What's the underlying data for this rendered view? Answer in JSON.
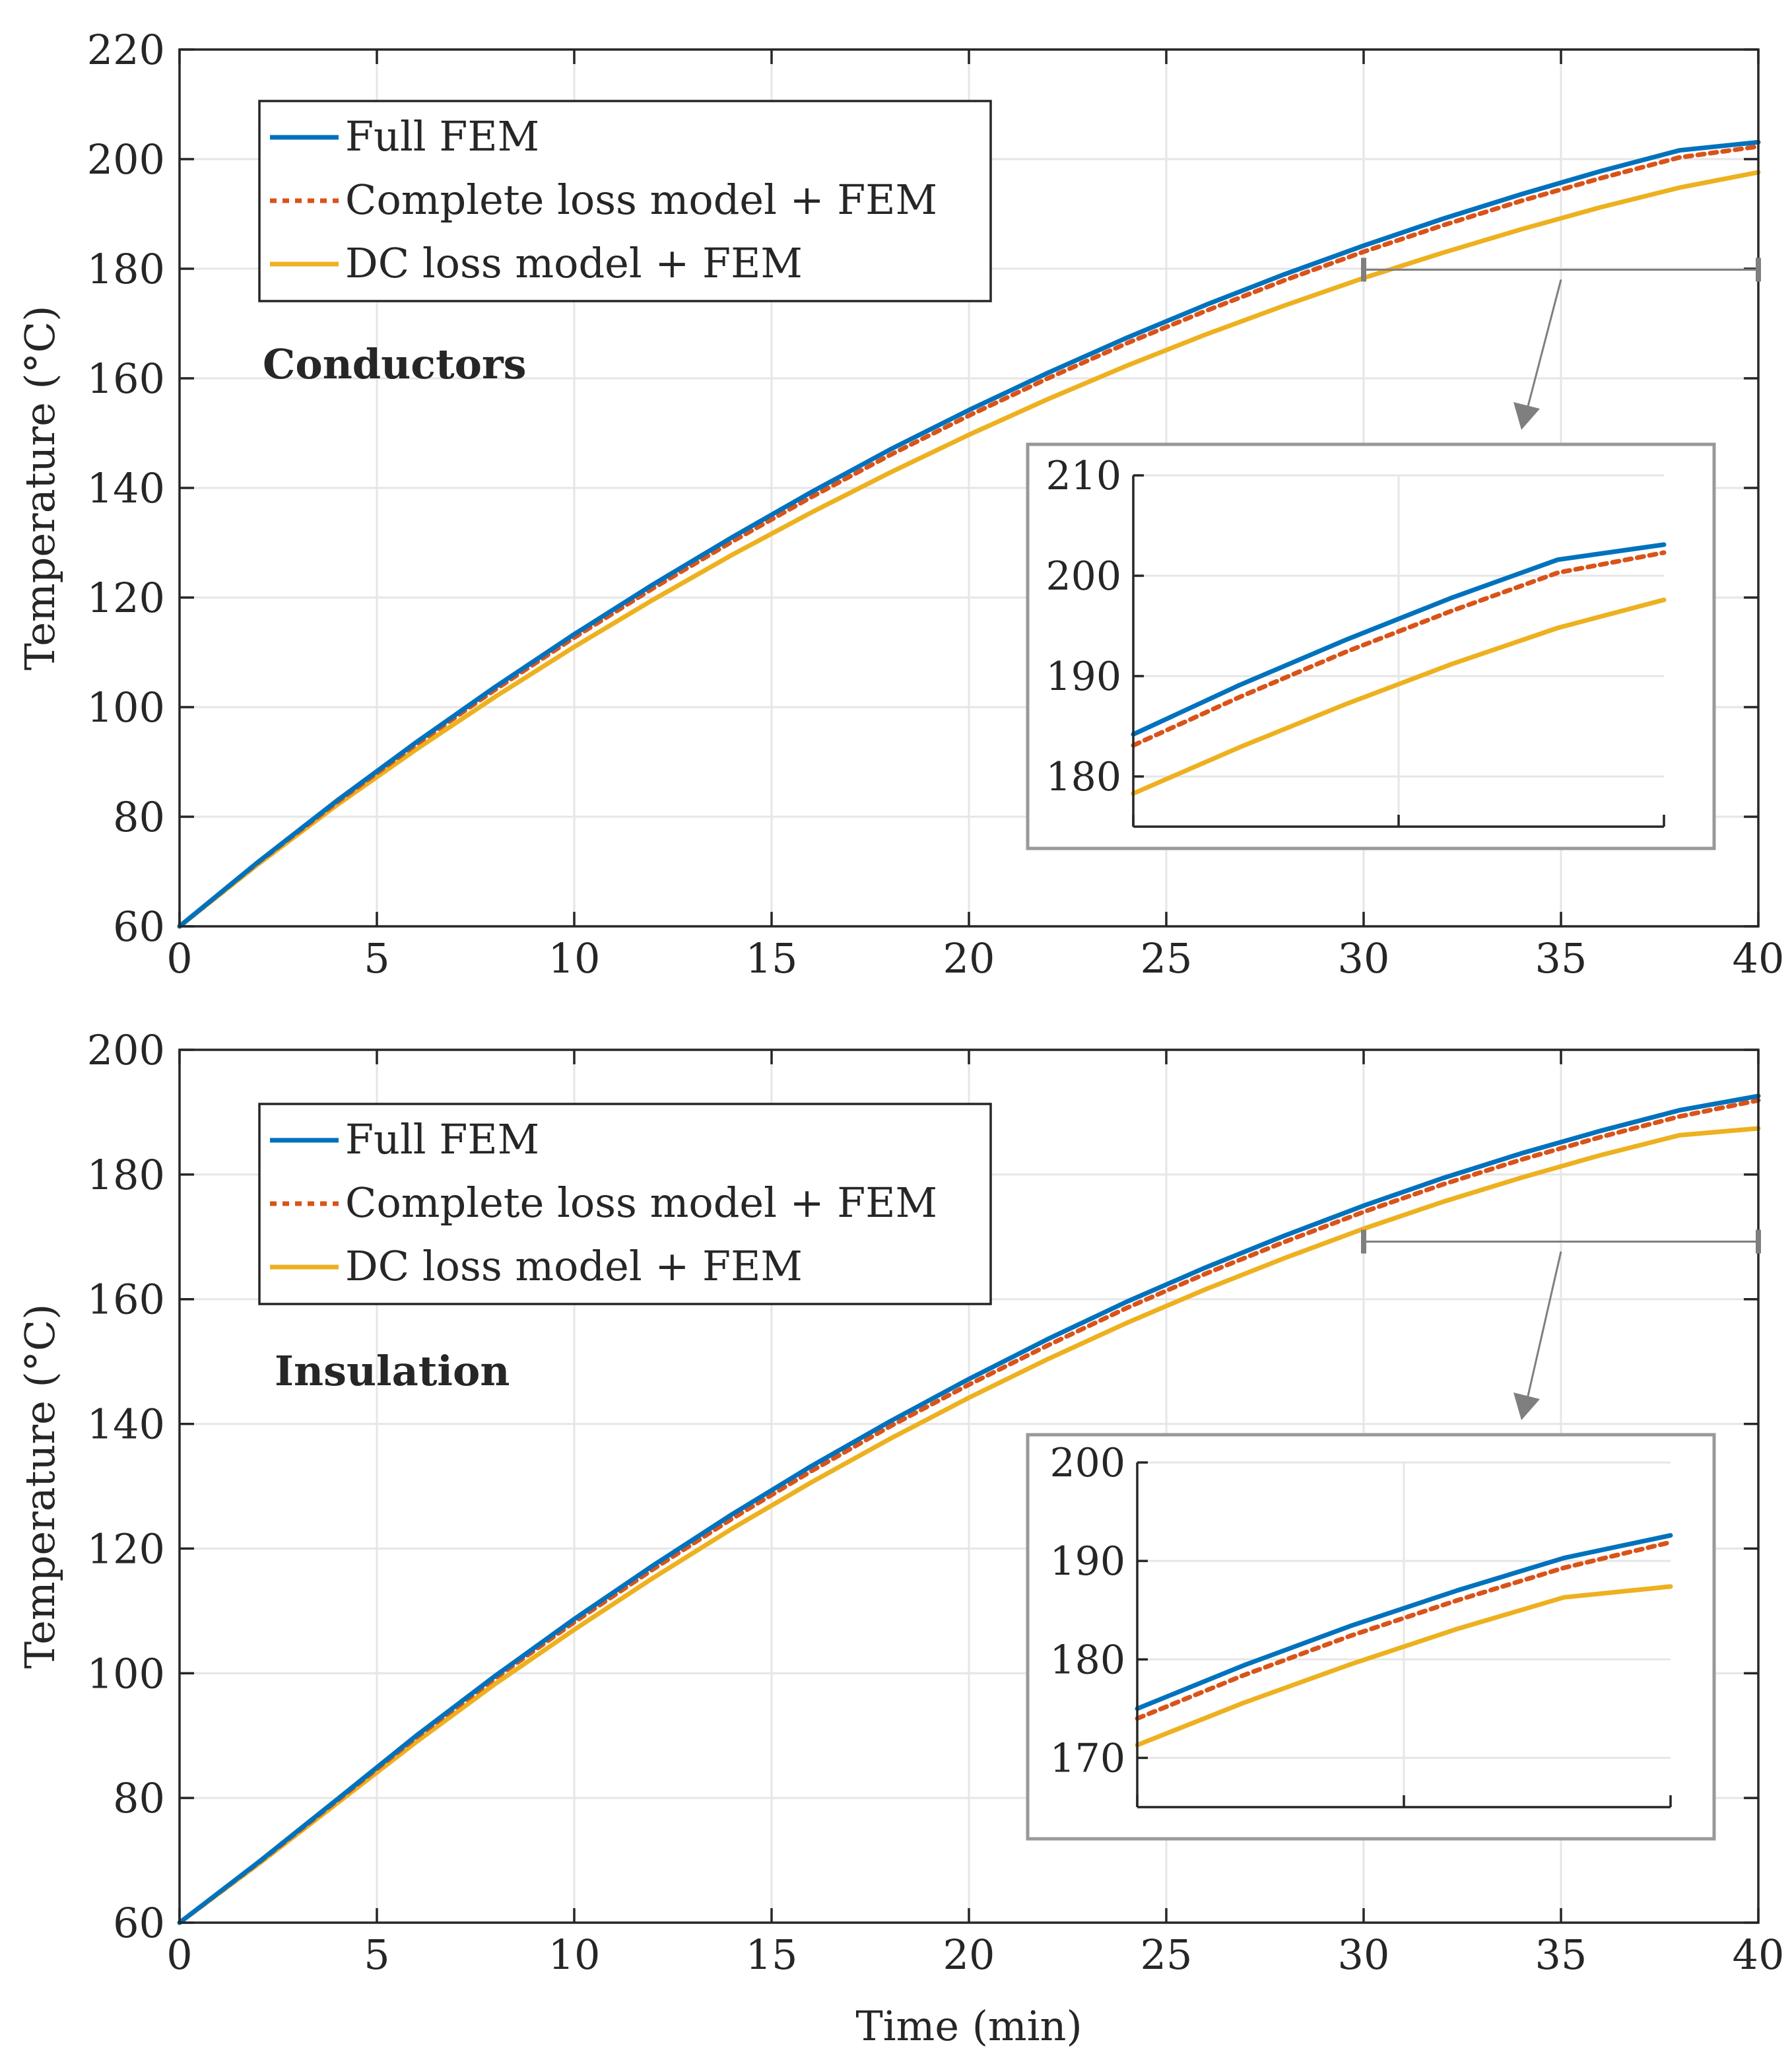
{
  "figure": {
    "xlabel": "Time (min)",
    "colors": {
      "full_fem": "#0072BD",
      "complete_loss": "#D95319",
      "dc_loss": "#EDB120",
      "axis": "#262626",
      "grid": "#e6e6e6",
      "inset_box": "#999999"
    }
  },
  "chart_data": [
    {
      "type": "line",
      "annotation": "Conductors",
      "xlabel": "",
      "ylabel": "Temperature (°C)",
      "xlim": [
        0,
        40
      ],
      "ylim": [
        60,
        220
      ],
      "x_ticks": [
        0,
        5,
        10,
        15,
        20,
        25,
        30,
        35,
        40
      ],
      "y_ticks": [
        60,
        80,
        100,
        120,
        140,
        160,
        180,
        200,
        220
      ],
      "grid": true,
      "legend_position": "top-left",
      "x": [
        0,
        2,
        4,
        6,
        8,
        10,
        12,
        14,
        16,
        18,
        20,
        22,
        24,
        26,
        28,
        30,
        32,
        34,
        36,
        38,
        40
      ],
      "series": [
        {
          "name": "Full FEM",
          "style": "solid",
          "values": [
            60,
            71.8,
            83.0,
            93.6,
            103.7,
            113.3,
            122.4,
            131.0,
            139.2,
            147.0,
            154.2,
            161.0,
            167.4,
            173.4,
            179.0,
            184.2,
            189.1,
            193.6,
            197.8,
            201.6,
            203.1
          ]
        },
        {
          "name": "Complete loss model + FEM",
          "style": "dotted",
          "values": [
            60,
            71.7,
            82.7,
            93.2,
            103.2,
            112.7,
            121.7,
            130.2,
            138.3,
            146.0,
            153.2,
            160.0,
            166.4,
            172.3,
            177.9,
            183.1,
            187.9,
            192.4,
            196.5,
            200.3,
            202.3
          ]
        },
        {
          "name": "DC loss model + FEM",
          "style": "solid",
          "values": [
            60,
            71.4,
            82.2,
            92.3,
            101.9,
            111.0,
            119.6,
            127.8,
            135.5,
            142.8,
            149.7,
            156.2,
            162.3,
            168.0,
            173.3,
            178.3,
            182.9,
            187.2,
            191.2,
            194.8,
            197.6
          ]
        }
      ],
      "inset": {
        "xlim": [
          30,
          40
        ],
        "ylim": [
          175,
          210
        ],
        "y_ticks": [
          180,
          190,
          200,
          210
        ]
      }
    },
    {
      "type": "line",
      "annotation": "Insulation",
      "xlabel": "Time (min)",
      "ylabel": "Temperature (°C)",
      "xlim": [
        0,
        40
      ],
      "ylim": [
        60,
        200
      ],
      "x_ticks": [
        0,
        5,
        10,
        15,
        20,
        25,
        30,
        35,
        40
      ],
      "y_ticks": [
        60,
        80,
        100,
        120,
        140,
        160,
        180,
        200
      ],
      "grid": true,
      "legend_position": "top-left",
      "x": [
        0,
        2,
        4,
        6,
        8,
        10,
        12,
        14,
        16,
        18,
        20,
        22,
        24,
        26,
        28,
        30,
        32,
        34,
        36,
        38,
        40
      ],
      "series": [
        {
          "name": "Full FEM",
          "style": "solid",
          "values": [
            60,
            69.7,
            79.8,
            90.0,
            99.6,
            108.7,
            117.3,
            125.5,
            133.2,
            140.4,
            147.2,
            153.6,
            159.6,
            165.1,
            170.2,
            175.0,
            179.4,
            183.4,
            187.0,
            190.3,
            192.6
          ]
        },
        {
          "name": "Complete loss model + FEM",
          "style": "dotted",
          "values": [
            60,
            69.6,
            79.6,
            89.7,
            99.2,
            108.2,
            116.7,
            124.8,
            132.4,
            139.6,
            146.3,
            152.6,
            158.6,
            164.1,
            169.2,
            174.0,
            178.4,
            182.4,
            186.0,
            189.3,
            191.9
          ]
        },
        {
          "name": "DC loss model + FEM",
          "style": "solid",
          "values": [
            60,
            69.4,
            79.2,
            89.0,
            98.3,
            107.0,
            115.3,
            123.2,
            130.6,
            137.6,
            144.2,
            150.4,
            156.2,
            161.6,
            166.6,
            171.3,
            175.6,
            179.5,
            183.1,
            186.3,
            187.4
          ]
        }
      ],
      "inset": {
        "xlim": [
          30,
          40
        ],
        "ylim": [
          165,
          200
        ],
        "y_ticks": [
          170,
          180,
          190,
          200
        ]
      }
    }
  ]
}
